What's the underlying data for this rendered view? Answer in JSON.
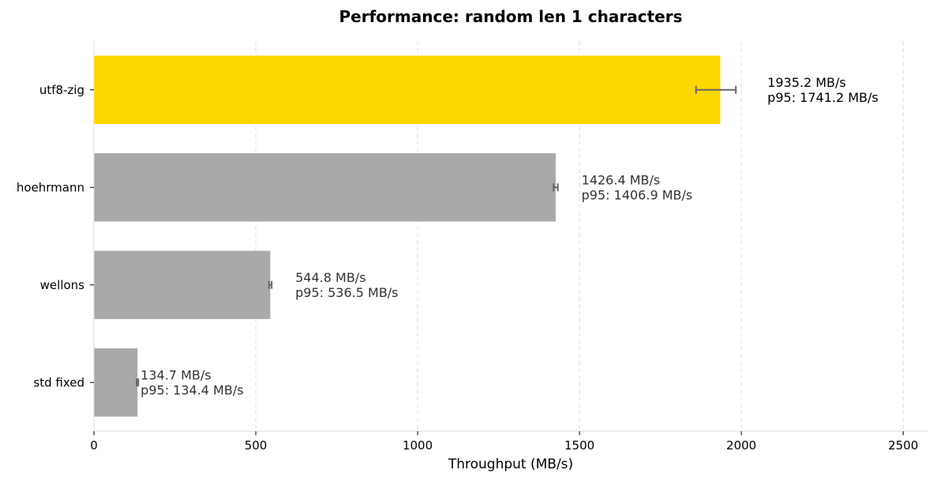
{
  "chart_data": {
    "type": "bar",
    "orientation": "horizontal",
    "title": "Performance: random len 1 characters",
    "xlabel": "Throughput (MB/s)",
    "ylabel": "",
    "xlim": [
      0,
      2580
    ],
    "xticks": [
      0,
      500,
      1000,
      1500,
      2000,
      2500
    ],
    "grid": "x-dashed",
    "categories": [
      "utf8-zig",
      "hoehrmann",
      "wellons",
      "std fixed"
    ],
    "values": [
      1935.2,
      1426.4,
      544.8,
      134.7
    ],
    "p95": [
      1741.2,
      1406.9,
      536.5,
      134.4
    ],
    "error_low": [
      1860,
      1420,
      541,
      132
    ],
    "error_high": [
      1983,
      1433,
      549,
      137
    ],
    "value_labels": [
      "1935.2 MB/s",
      "1426.4 MB/s",
      "544.8 MB/s",
      "134.7 MB/s"
    ],
    "p95_labels": [
      "p95: 1741.2 MB/s",
      "p95: 1406.9 MB/s",
      "p95: 536.5 MB/s",
      "p95: 134.4 MB/s"
    ],
    "colors": [
      "#FFD700",
      "#A9A9A9",
      "#A9A9A9",
      "#A9A9A9"
    ],
    "label_colors": [
      "#000000",
      "#333333",
      "#333333",
      "#333333"
    ],
    "error_color": "#666666",
    "grid_color": "#dddddd",
    "spine_color": "#dddddd"
  }
}
